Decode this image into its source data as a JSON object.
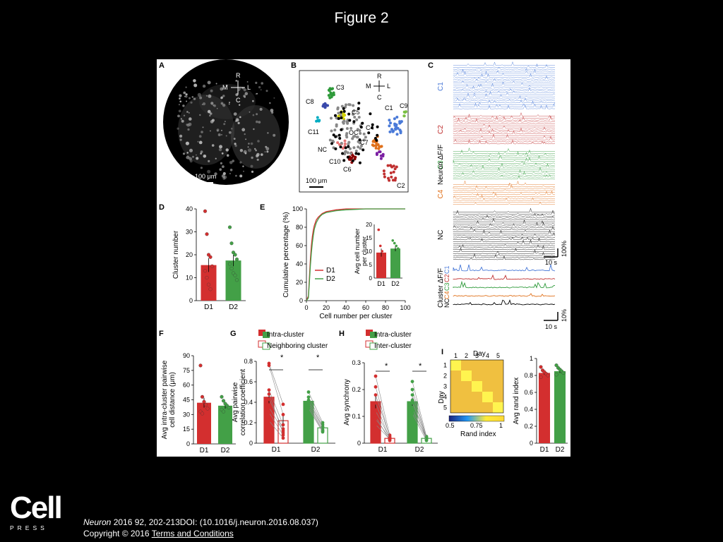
{
  "slide": {
    "title": "Figure 2"
  },
  "panels": {
    "A": {
      "letter": "A",
      "compass": {
        "top": "R",
        "left": "M",
        "right": "L",
        "bottom": "C"
      },
      "scale_label": "100 μm"
    },
    "B": {
      "letter": "B",
      "compass": {
        "top": "R",
        "left": "M",
        "right": "L",
        "bottom": "C"
      },
      "scale_label": "100 μm",
      "cluster_labels": [
        "C3",
        "C8",
        "C5",
        "C11",
        "NC",
        "C10",
        "C6",
        "OC",
        "C7",
        "C4",
        "C1",
        "C9",
        "C2"
      ]
    },
    "C": {
      "letter": "C",
      "neuron_ylabel": "Neuron ΔF/F",
      "cluster_ylabel": "Cluster ΔF/F",
      "groups": [
        {
          "label": "C1",
          "color": "#4a7ad8"
        },
        {
          "label": "C2",
          "color": "#c03030"
        },
        {
          "label": "C3",
          "color": "#2e9a3a"
        },
        {
          "label": "C4",
          "color": "#e0701a"
        },
        {
          "label": "NC",
          "color": "#000000"
        }
      ],
      "time_scale": "10 s",
      "neuron_scale": "100%",
      "cluster_scale": "10%"
    },
    "D": {
      "letter": "D"
    },
    "E": {
      "letter": "E"
    },
    "F": {
      "letter": "F"
    },
    "G": {
      "letter": "G",
      "legend": [
        "Intra-cluster",
        "Neighboring cluster"
      ],
      "sig": [
        "*",
        "*"
      ]
    },
    "H": {
      "letter": "H",
      "legend": [
        "Intra-cluster",
        "Inter-cluster"
      ],
      "sig": [
        "*",
        "*"
      ]
    },
    "I": {
      "letter": "I",
      "heatmap_title": "Day",
      "heatmap_ylabel": "Day",
      "day_ticks": [
        "1",
        "2",
        "3",
        "4",
        "5"
      ],
      "colorbar_ticks": [
        "0.5",
        "0.75",
        "1"
      ],
      "colorbar_label": "Rand index"
    }
  },
  "chart_data": [
    {
      "panel": "D",
      "type": "bar",
      "categories": [
        "D1",
        "D2"
      ],
      "values": [
        15.5,
        17.5
      ],
      "errors": [
        3,
        2.5
      ],
      "points": [
        [
          39,
          29,
          20,
          19,
          15,
          13,
          10,
          7,
          5
        ],
        [
          32,
          25,
          21,
          20,
          18,
          16,
          14,
          12,
          11,
          9
        ]
      ],
      "colors": [
        "#d32f2f",
        "#43a047"
      ],
      "xlabel": "",
      "ylabel": "Cluster number",
      "ylim": [
        0,
        40
      ],
      "yticks": [
        0,
        10,
        20,
        30,
        40
      ]
    },
    {
      "panel": "E",
      "type": "line",
      "series": [
        {
          "name": "D1",
          "color": "#d32f2f",
          "x": [
            0,
            2,
            3,
            4,
            5,
            6,
            7,
            8,
            10,
            12,
            14,
            16,
            18,
            20,
            25,
            30,
            40,
            60,
            80,
            100
          ],
          "values": [
            0,
            5,
            25,
            45,
            60,
            70,
            77,
            82,
            88,
            91,
            93,
            95,
            96,
            97,
            98,
            99,
            100,
            100,
            100,
            100
          ]
        },
        {
          "name": "D2",
          "color": "#43a047",
          "x": [
            0,
            2,
            3,
            4,
            5,
            6,
            7,
            8,
            10,
            12,
            14,
            16,
            18,
            20,
            25,
            30,
            40,
            50,
            60,
            100
          ],
          "values": [
            0,
            3,
            20,
            38,
            52,
            63,
            71,
            78,
            85,
            89,
            92,
            94,
            95,
            96,
            97,
            98,
            99,
            99.5,
            100,
            100
          ]
        }
      ],
      "xlabel": "Cell number per cluster",
      "ylabel": "Cumulative percentage (%)",
      "xlim": [
        0,
        100
      ],
      "ylim": [
        0,
        100
      ],
      "xticks": [
        0,
        20,
        40,
        60,
        80,
        100
      ],
      "yticks": [
        0,
        20,
        40,
        60,
        80,
        100
      ],
      "inset": {
        "type": "bar",
        "categories": [
          "D1",
          "D2"
        ],
        "values": [
          9.5,
          11
        ],
        "errors": [
          1.5,
          1
        ],
        "points": [
          [
            18,
            12,
            10,
            9,
            8,
            7,
            6
          ],
          [
            14,
            13,
            12,
            11,
            10,
            9,
            8,
            7
          ]
        ],
        "ylabel": "Avg cell number per cluster",
        "ylim": [
          0,
          20
        ],
        "yticks": [
          0,
          5,
          10,
          15,
          20
        ]
      }
    },
    {
      "panel": "F",
      "type": "bar",
      "categories": [
        "D1",
        "D2"
      ],
      "values": [
        42,
        39
      ],
      "errors": [
        5,
        3
      ],
      "points": [
        [
          80,
          48,
          43,
          40,
          36,
          33,
          31
        ],
        [
          48,
          44,
          41,
          39,
          37,
          35,
          33
        ]
      ],
      "colors": [
        "#d32f2f",
        "#43a047"
      ],
      "ylabel": "Avg intra-cluster pairwise cell distance (μm)",
      "ylim": [
        0,
        90
      ],
      "yticks": [
        0,
        15,
        30,
        45,
        60,
        75,
        90
      ]
    },
    {
      "panel": "G",
      "type": "bar",
      "categories": [
        "D1",
        "D2"
      ],
      "series": [
        {
          "name": "Intra-cluster",
          "values": [
            0.45,
            0.41
          ],
          "errors": [
            0.06,
            0.03
          ]
        },
        {
          "name": "Neighboring cluster",
          "values": [
            0.22,
            0.15
          ],
          "errors": [
            0.06,
            0.02
          ]
        }
      ],
      "paired": [
        [
          [
            0.78,
            0.38
          ],
          [
            0.76,
            0.28
          ],
          [
            0.52,
            0.18
          ],
          [
            0.48,
            0.1
          ],
          [
            0.43,
            0.14
          ],
          [
            0.35,
            0.12
          ],
          [
            0.3,
            0.08
          ],
          [
            0.22,
            0.05
          ]
        ],
        [
          [
            0.5,
            0.2
          ],
          [
            0.45,
            0.18
          ],
          [
            0.42,
            0.16
          ],
          [
            0.4,
            0.15
          ],
          [
            0.38,
            0.13
          ],
          [
            0.36,
            0.12
          ],
          [
            0.34,
            0.11
          ]
        ]
      ],
      "ylabel": "Avg pairwise correlation coefficient",
      "ylim": [
        0,
        0.8
      ],
      "yticks": [
        0,
        0.2,
        0.4,
        0.6,
        0.8
      ]
    },
    {
      "panel": "H",
      "type": "bar",
      "categories": [
        "D1",
        "D2"
      ],
      "series": [
        {
          "name": "Intra-cluster",
          "values": [
            0.155,
            0.155
          ],
          "errors": [
            0.025,
            0.015
          ]
        },
        {
          "name": "Inter-cluster",
          "values": [
            0.018,
            0.018
          ],
          "errors": [
            0.004,
            0.003
          ]
        }
      ],
      "paired": [
        [
          [
            0.25,
            0.03
          ],
          [
            0.21,
            0.02
          ],
          [
            0.18,
            0.025
          ],
          [
            0.15,
            0.015
          ],
          [
            0.12,
            0.02
          ],
          [
            0.1,
            0.01
          ],
          [
            0.09,
            0.02
          ],
          [
            0.07,
            0.015
          ]
        ],
        [
          [
            0.23,
            0.025
          ],
          [
            0.2,
            0.02
          ],
          [
            0.18,
            0.02
          ],
          [
            0.16,
            0.015
          ],
          [
            0.15,
            0.02
          ],
          [
            0.13,
            0.015
          ],
          [
            0.12,
            0.02
          ],
          [
            0.11,
            0.01
          ]
        ]
      ],
      "ylabel": "Avg synchrony",
      "ylim": [
        0,
        0.3
      ],
      "yticks": [
        0,
        0.1,
        0.2,
        0.3
      ]
    },
    {
      "panel": "I",
      "type": "heatmap",
      "rows": [
        "1",
        "2",
        "3",
        "4",
        "5"
      ],
      "cols": [
        "1",
        "2",
        "3",
        "4",
        "5"
      ],
      "values": [
        [
          1,
          0.84,
          0.84,
          0.84,
          0.84
        ],
        [
          0.84,
          1,
          0.84,
          0.84,
          0.84
        ],
        [
          0.84,
          0.84,
          1,
          0.84,
          0.84
        ],
        [
          0.84,
          0.84,
          0.84,
          1,
          0.84
        ],
        [
          0.84,
          0.84,
          0.84,
          0.84,
          1
        ]
      ],
      "colorscale": [
        "#1a237e",
        "#2196f3",
        "#ffeb3b",
        "#fdd835"
      ],
      "vmin": 0.5,
      "vmax": 1
    },
    {
      "panel": "I-bar",
      "type": "bar",
      "categories": [
        "D1",
        "D2"
      ],
      "values": [
        0.83,
        0.85
      ],
      "errors": [
        0.02,
        0.02
      ],
      "points": [
        [
          0.9,
          0.86,
          0.84,
          0.82,
          0.8,
          0.78
        ],
        [
          0.92,
          0.89,
          0.87,
          0.85,
          0.83,
          0.81
        ]
      ],
      "colors": [
        "#d32f2f",
        "#43a047"
      ],
      "ylabel": "Avg rand index",
      "ylim": [
        0,
        1.0
      ],
      "yticks": [
        0,
        0.2,
        0.4,
        0.6,
        0.8,
        1.0
      ]
    }
  ],
  "footer": {
    "logo_word": "Cell",
    "logo_sub": "PRESS",
    "journal": "Neuron",
    "citation": " 2016 92, 202-213DOI: (10.1016/j.neuron.2016.08.037)",
    "copyright": "Copyright © 2016 ",
    "terms": "Terms and Conditions"
  }
}
